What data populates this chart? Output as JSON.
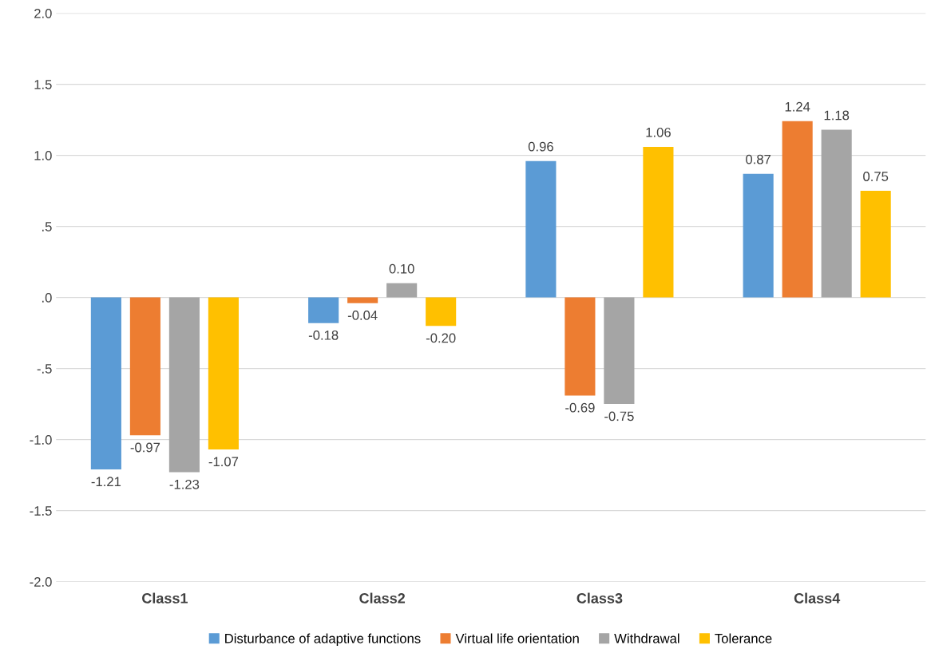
{
  "chart_data": {
    "type": "bar",
    "categories": [
      "Class1",
      "Class2",
      "Class3",
      "Class4"
    ],
    "series": [
      {
        "name": "Disturbance of adaptive functions",
        "color": "#5b9bd5",
        "values": [
          -1.21,
          -0.18,
          0.96,
          0.87
        ],
        "value_labels": [
          "-1.21",
          "-0.18",
          "0.96",
          "0.87"
        ]
      },
      {
        "name": "Virtual life orientation",
        "color": "#ed7d31",
        "values": [
          -0.97,
          -0.04,
          -0.69,
          1.24
        ],
        "value_labels": [
          "-0.97",
          "-0.04",
          "-0.69",
          "1.24"
        ]
      },
      {
        "name": "Withdrawal",
        "color": "#a5a5a5",
        "values": [
          -1.23,
          0.1,
          -0.75,
          1.18
        ],
        "value_labels": [
          "-1.23",
          "0.10",
          "-0.75",
          "1.18"
        ]
      },
      {
        "name": "Tolerance",
        "color": "#ffc000",
        "values": [
          -1.07,
          -0.2,
          1.06,
          0.75
        ],
        "value_labels": [
          "-1.07",
          "-0.20",
          "1.06",
          "0.75"
        ]
      }
    ],
    "ylim": [
      -2.0,
      2.0
    ],
    "yticks": [
      {
        "value": -2.0,
        "label": "-2.0"
      },
      {
        "value": -1.5,
        "label": "-1.5"
      },
      {
        "value": -1.0,
        "label": "-1.0"
      },
      {
        "value": -0.5,
        "label": "-.5"
      },
      {
        "value": 0,
        "label": ".0"
      },
      {
        "value": 0.5,
        "label": ".5"
      },
      {
        "value": 1.0,
        "label": "1.0"
      },
      {
        "value": 1.5,
        "label": "1.5"
      },
      {
        "value": 2.0,
        "label": "2.0"
      }
    ],
    "grid": "y",
    "legend": "bottom"
  }
}
